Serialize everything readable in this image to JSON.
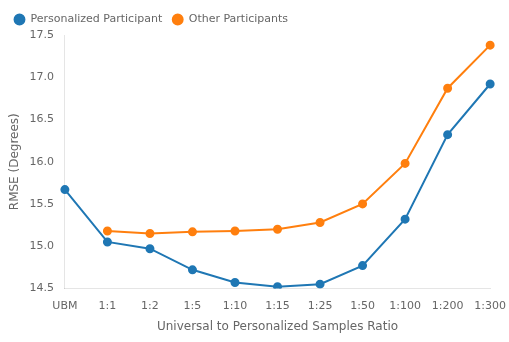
{
  "chart_data": {
    "type": "line",
    "categories": [
      "UBM",
      "1:1",
      "1:2",
      "1:5",
      "1:10",
      "1:15",
      "1:25",
      "1:50",
      "1:100",
      "1:200",
      "1:300"
    ],
    "series": [
      {
        "name": "Personalized Participant",
        "color": "#1f77b4",
        "values": [
          15.67,
          15.05,
          14.97,
          14.72,
          14.57,
          14.52,
          14.55,
          14.77,
          15.32,
          16.32,
          16.92
        ]
      },
      {
        "name": "Other Participants",
        "color": "#ff7f0e",
        "values": [
          null,
          15.18,
          15.15,
          15.17,
          15.18,
          15.2,
          15.28,
          15.5,
          15.98,
          16.87,
          17.38
        ]
      }
    ],
    "x_label": "Universal to Personalized Samples Ratio",
    "y_label": "RMSE (Degrees)",
    "ylim": [
      14.5,
      17.5
    ],
    "yticks": [
      14.5,
      {
        "value": 15,
        "label": "15.0"
      },
      15.5,
      {
        "value": 16,
        "label": "16.0"
      },
      16.5,
      {
        "value": 17,
        "label": "17.0"
      },
      17.5
    ],
    "marker": "circle",
    "grid": false,
    "legend": "upper left"
  }
}
